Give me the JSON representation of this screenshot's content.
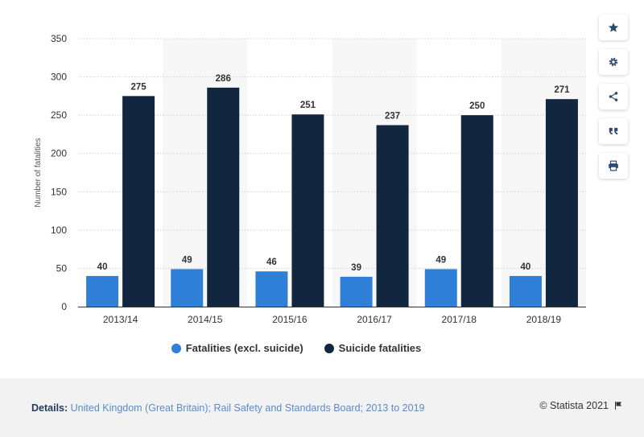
{
  "chart_data": {
    "type": "bar",
    "categories": [
      "2013/14",
      "2014/15",
      "2015/16",
      "2016/17",
      "2017/18",
      "2018/19"
    ],
    "series": [
      {
        "name": "Fatalities (excl. suicide)",
        "values": [
          40,
          49,
          46,
          39,
          49,
          40
        ],
        "color": "#2f7ed8"
      },
      {
        "name": "Suicide fatalities",
        "values": [
          275,
          286,
          251,
          237,
          250,
          271
        ],
        "color": "#12263f"
      }
    ],
    "title": "",
    "xlabel": "",
    "ylabel": "Number of fatalities",
    "ylim": [
      0,
      350
    ],
    "yticks": [
      0,
      50,
      100,
      150,
      200,
      250,
      300,
      350
    ],
    "grid": true,
    "legend_position": "bottom"
  },
  "toolbar": {
    "icons": [
      "star-icon",
      "gear-icon",
      "share-icon",
      "quote-icon",
      "print-icon"
    ]
  },
  "footer": {
    "details_label": "Details:",
    "details_text": "United Kingdom (Great Britain); Rail Safety and Standards Board; 2013 to 2019",
    "copyright": "© Statista 2021"
  }
}
